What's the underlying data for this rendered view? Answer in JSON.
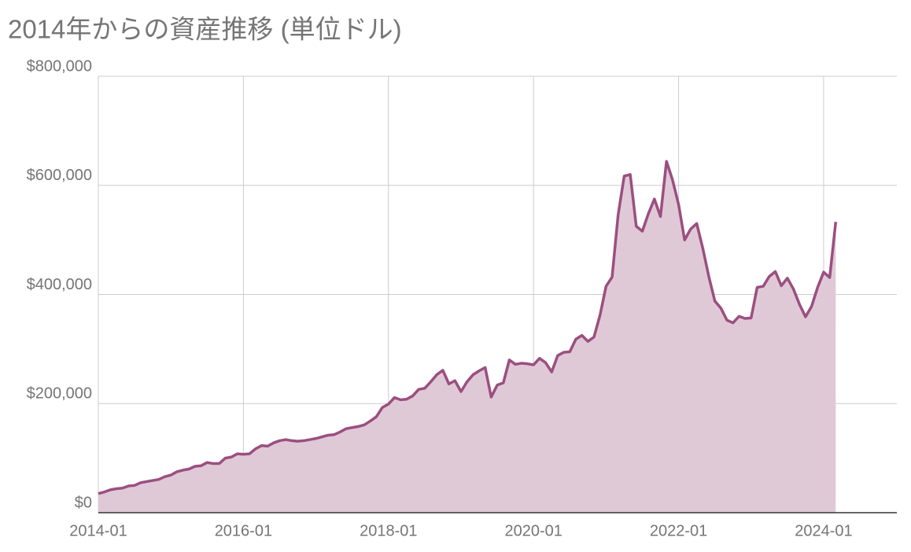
{
  "chart_data": {
    "type": "area",
    "title": "2014年からの資産推移 (単位ドル)",
    "color": "#9b4f7f",
    "fill": "#e0c9d7",
    "grid": true,
    "x": [
      "2014-01",
      "2014-02",
      "2014-03",
      "2014-04",
      "2014-05",
      "2014-06",
      "2014-07",
      "2014-08",
      "2014-09",
      "2014-10",
      "2014-11",
      "2014-12",
      "2015-01",
      "2015-02",
      "2015-03",
      "2015-04",
      "2015-05",
      "2015-06",
      "2015-07",
      "2015-08",
      "2015-09",
      "2015-10",
      "2015-11",
      "2015-12",
      "2016-01",
      "2016-02",
      "2016-03",
      "2016-04",
      "2016-05",
      "2016-06",
      "2016-07",
      "2016-08",
      "2016-09",
      "2016-10",
      "2016-11",
      "2016-12",
      "2017-01",
      "2017-02",
      "2017-03",
      "2017-04",
      "2017-05",
      "2017-06",
      "2017-07",
      "2017-08",
      "2017-09",
      "2017-10",
      "2017-11",
      "2017-12",
      "2018-01",
      "2018-02",
      "2018-03",
      "2018-04",
      "2018-05",
      "2018-06",
      "2018-07",
      "2018-08",
      "2018-09",
      "2018-10",
      "2018-11",
      "2018-12",
      "2019-01",
      "2019-02",
      "2019-03",
      "2019-04",
      "2019-05",
      "2019-06",
      "2019-07",
      "2019-08",
      "2019-09",
      "2019-10",
      "2019-11",
      "2019-12",
      "2020-01",
      "2020-02",
      "2020-03",
      "2020-04",
      "2020-05",
      "2020-06",
      "2020-07",
      "2020-08",
      "2020-09",
      "2020-10",
      "2020-11",
      "2020-12",
      "2021-01",
      "2021-02",
      "2021-03",
      "2021-04",
      "2021-05",
      "2021-06",
      "2021-07",
      "2021-08",
      "2021-09",
      "2021-10",
      "2021-11",
      "2021-12",
      "2022-01",
      "2022-02",
      "2022-03",
      "2022-04",
      "2022-05",
      "2022-06",
      "2022-07",
      "2022-08",
      "2022-09",
      "2022-10",
      "2022-11",
      "2022-12",
      "2023-01",
      "2023-02",
      "2023-03",
      "2023-04",
      "2023-05",
      "2023-06",
      "2023-07",
      "2023-08",
      "2023-09",
      "2023-10",
      "2023-11",
      "2023-12",
      "2024-01",
      "2024-02",
      "2024-03"
    ],
    "values": [
      35000,
      38000,
      42000,
      44000,
      45000,
      49000,
      50000,
      55000,
      57000,
      59000,
      61000,
      66000,
      69000,
      75000,
      78000,
      80000,
      85000,
      86000,
      92000,
      90000,
      90000,
      100000,
      102000,
      108000,
      107000,
      108000,
      117000,
      123000,
      122000,
      128000,
      132000,
      134000,
      132000,
      131000,
      132000,
      134000,
      136000,
      139000,
      142000,
      143000,
      148000,
      154000,
      156000,
      158000,
      161000,
      168000,
      176000,
      193000,
      199000,
      211000,
      207000,
      208000,
      214000,
      226000,
      228000,
      240000,
      253000,
      261000,
      236000,
      242000,
      222000,
      240000,
      253000,
      260000,
      266000,
      212000,
      234000,
      238000,
      280000,
      272000,
      274000,
      273000,
      271000,
      283000,
      275000,
      258000,
      288000,
      294000,
      295000,
      318000,
      325000,
      314000,
      322000,
      362000,
      415000,
      432000,
      546000,
      617000,
      620000,
      525000,
      516000,
      548000,
      575000,
      543000,
      644000,
      610000,
      565000,
      500000,
      520000,
      530000,
      485000,
      433000,
      388000,
      375000,
      353000,
      348000,
      360000,
      356000,
      357000,
      413000,
      415000,
      433000,
      442000,
      416000,
      430000,
      410000,
      382000,
      359000,
      378000,
      413000,
      441000,
      431000,
      533000
    ],
    "xticks": [
      "2014-01",
      "2016-01",
      "2018-01",
      "2020-01",
      "2022-01",
      "2024-01"
    ],
    "ylim": [
      0,
      800000
    ],
    "yticks": [
      {
        "value": 0,
        "label": "$0"
      },
      {
        "value": 200000,
        "label": "$200,000"
      },
      {
        "value": 400000,
        "label": "$400,000"
      },
      {
        "value": 600000,
        "label": "$600,000"
      },
      {
        "value": 800000,
        "label": "$800,000"
      }
    ]
  }
}
